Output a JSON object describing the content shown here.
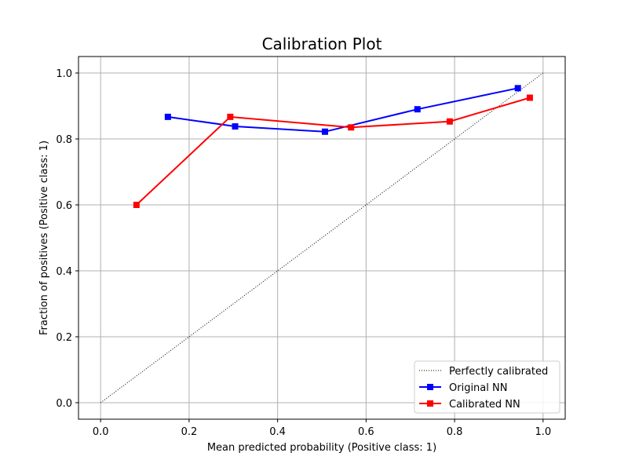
{
  "chart_data": {
    "type": "line",
    "title": "Calibration Plot",
    "xlabel": "Mean predicted probability (Positive class: 1)",
    "ylabel": "Fraction of positives (Positive class: 1)",
    "xlim": [
      -0.05,
      1.05
    ],
    "ylim": [
      -0.05,
      1.05
    ],
    "xticks": [
      0.0,
      0.2,
      0.4,
      0.6,
      0.8,
      1.0
    ],
    "yticks": [
      0.0,
      0.2,
      0.4,
      0.6,
      0.8,
      1.0
    ],
    "xtick_labels": [
      "0.0",
      "0.2",
      "0.4",
      "0.6",
      "0.8",
      "1.0"
    ],
    "ytick_labels": [
      "0.0",
      "0.2",
      "0.4",
      "0.6",
      "0.8",
      "1.0"
    ],
    "grid": true,
    "legend_position": "lower-right",
    "series": [
      {
        "name": "Perfectly calibrated",
        "style": "dotted",
        "color": "#000000",
        "marker": "none",
        "x": [
          0.0,
          1.0
        ],
        "y": [
          0.0,
          1.0
        ]
      },
      {
        "name": "Original NN",
        "style": "solid",
        "color": "#0000ff",
        "marker": "square",
        "x": [
          0.152,
          0.304,
          0.507,
          0.716,
          0.943
        ],
        "y": [
          0.867,
          0.838,
          0.822,
          0.89,
          0.954
        ]
      },
      {
        "name": "Calibrated NN",
        "style": "solid",
        "color": "#ff0000",
        "marker": "square",
        "x": [
          0.081,
          0.293,
          0.566,
          0.789,
          0.97
        ],
        "y": [
          0.6,
          0.867,
          0.835,
          0.853,
          0.925
        ]
      }
    ]
  }
}
